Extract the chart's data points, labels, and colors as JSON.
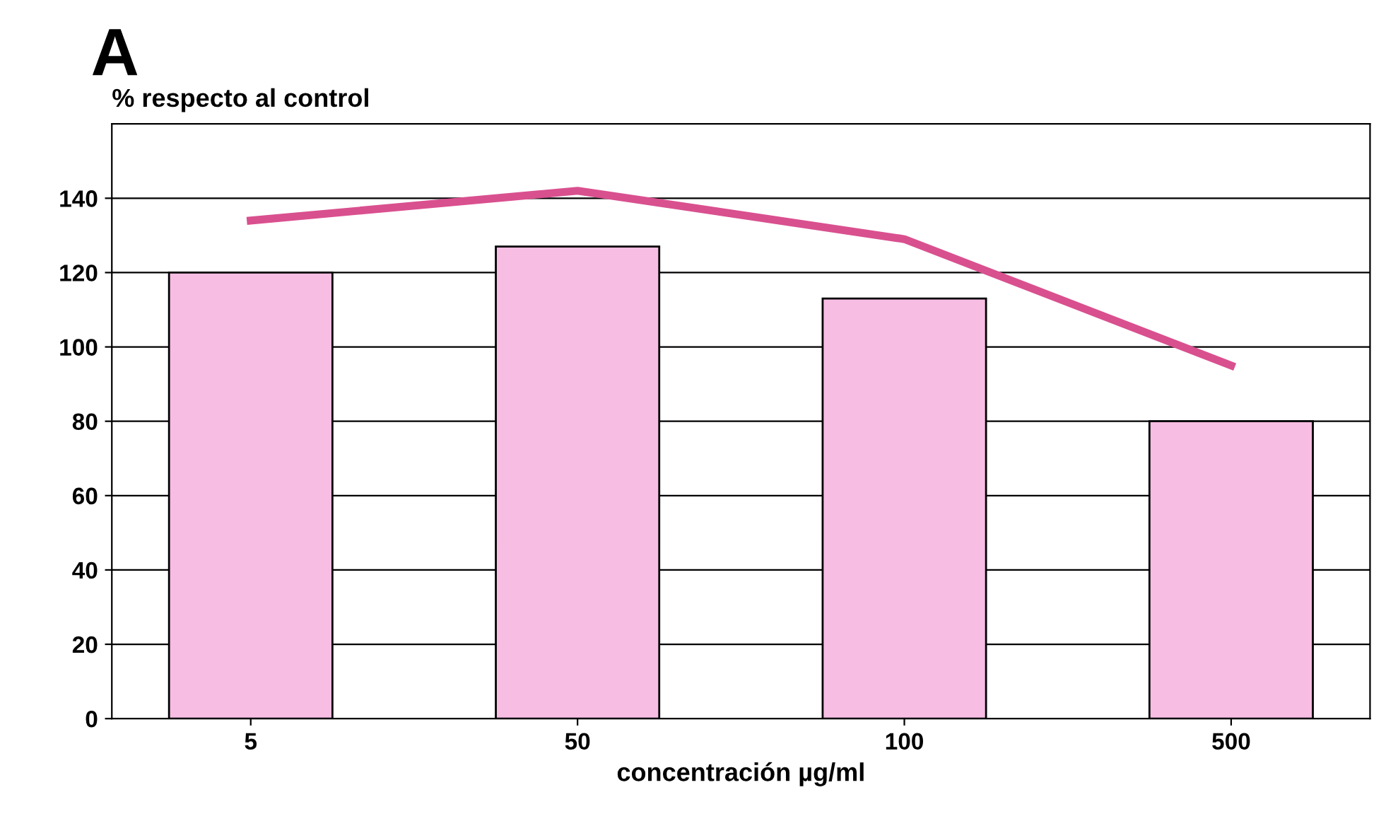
{
  "chart_data": {
    "type": "bar",
    "title": "A",
    "ylabel": "% respecto al control",
    "xlabel": "concentración µg/ml",
    "categories": [
      "5",
      "50",
      "100",
      "500"
    ],
    "series": [
      {
        "color": "#f7bde3",
        "values": [
          120,
          127,
          113,
          80
        ]
      },
      {
        "type": "line",
        "color": "#d9508f",
        "values": [
          134,
          142,
          129,
          95
        ]
      }
    ],
    "ylim": [
      0,
      160
    ],
    "yticks": [
      0,
      20,
      40,
      60,
      80,
      100,
      120,
      140
    ],
    "grid": "y",
    "legend": false
  }
}
